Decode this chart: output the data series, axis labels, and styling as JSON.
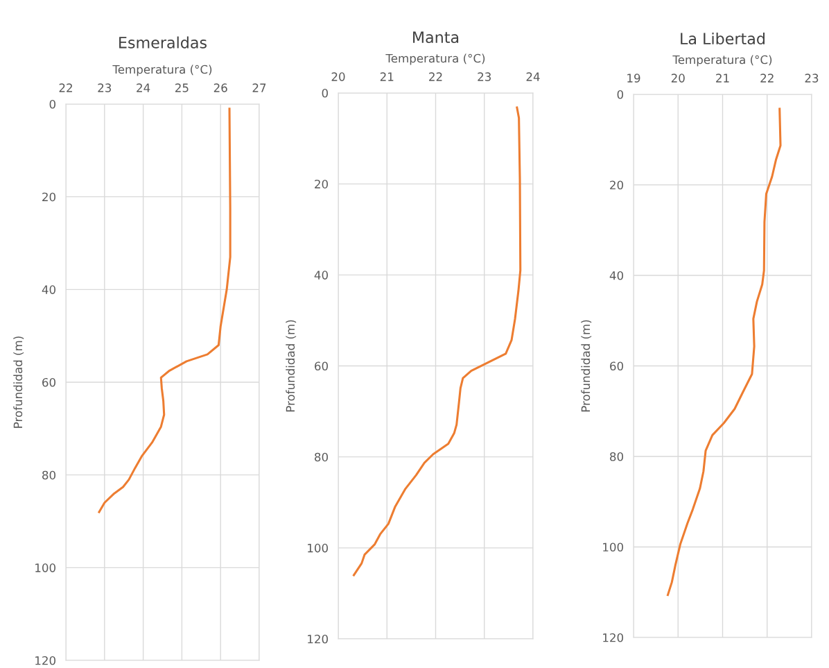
{
  "chart_data": [
    {
      "type": "line",
      "title": "Esmeraldas",
      "xlabel": "Temperatura (°C)",
      "ylabel": "Profundidad (m)",
      "xlim": [
        22,
        27
      ],
      "xticks": [
        22,
        23,
        24,
        25,
        26,
        27
      ],
      "ylim": [
        120,
        0
      ],
      "yticks": [
        0,
        20,
        40,
        60,
        80,
        100,
        120
      ],
      "grid": true,
      "marker": "none",
      "line_style": "solid",
      "series": [
        {
          "color": "#ed7d31",
          "x": [
            26.23,
            26.25,
            26.25,
            26.16,
            26.0,
            25.95,
            25.66,
            25.12,
            24.68,
            24.46,
            24.48,
            24.52,
            24.54,
            24.46,
            24.23,
            23.96,
            23.79,
            23.63,
            23.48,
            23.25,
            23.0,
            22.86
          ],
          "values": [
            1,
            22.5,
            33,
            40,
            48,
            52,
            54,
            55.5,
            57.5,
            59,
            61.3,
            64,
            67,
            69.6,
            73,
            76,
            78.5,
            81,
            82.6,
            84,
            86,
            88
          ]
        }
      ]
    },
    {
      "type": "line",
      "title": "Manta",
      "xlabel": "Temperatura (°C)",
      "ylabel": "Profundidad (m)",
      "xlim": [
        20,
        24
      ],
      "xticks": [
        20,
        21,
        22,
        23,
        24
      ],
      "ylim": [
        120,
        0
      ],
      "yticks": [
        0,
        20,
        40,
        60,
        80,
        100,
        120
      ],
      "grid": true,
      "marker": "none",
      "line_style": "solid",
      "series": [
        {
          "color": "#ed7d31",
          "x": [
            23.67,
            23.71,
            23.73,
            23.74,
            23.7,
            23.63,
            23.56,
            23.44,
            23.16,
            22.73,
            22.56,
            22.51,
            22.48,
            22.43,
            22.38,
            22.26,
            21.95,
            21.77,
            21.6,
            21.38,
            21.17,
            21.03,
            20.86,
            20.75,
            20.54,
            20.48,
            20.32
          ],
          "values": [
            3.2,
            5.5,
            19,
            39,
            43.5,
            49.7,
            54.3,
            57.3,
            58.8,
            61.1,
            62.7,
            64.9,
            68,
            72.9,
            74.8,
            77.1,
            79.4,
            81.3,
            84,
            87,
            90.9,
            94.7,
            97,
            99.2,
            101.5,
            103.4,
            106
          ]
        }
      ]
    },
    {
      "type": "line",
      "title": "La Libertad",
      "xlabel": "Temperatura (°C)",
      "ylabel": "Profundidad (m)",
      "xlim": [
        19,
        23
      ],
      "xticks": [
        19,
        20,
        21,
        22,
        23
      ],
      "ylim": [
        120,
        0
      ],
      "yticks": [
        0,
        20,
        40,
        60,
        80,
        100,
        120
      ],
      "grid": true,
      "marker": "none",
      "line_style": "solid",
      "series": [
        {
          "color": "#ed7d31",
          "x": [
            22.28,
            22.3,
            22.2,
            22.11,
            21.98,
            21.94,
            21.93,
            21.89,
            21.77,
            21.69,
            21.71,
            21.66,
            21.46,
            21.27,
            21.03,
            20.77,
            20.62,
            20.57,
            20.49,
            20.33,
            20.21,
            20.05,
            19.94,
            19.86,
            19.77
          ],
          "values": [
            3.2,
            11.3,
            14.4,
            18.2,
            22,
            28.2,
            38.9,
            42,
            45.8,
            49.6,
            55.7,
            61.8,
            65.7,
            69.5,
            72.6,
            75.3,
            78.7,
            83.3,
            87.1,
            91.7,
            94.8,
            99.4,
            104,
            107.8,
            110.6
          ]
        }
      ]
    }
  ]
}
